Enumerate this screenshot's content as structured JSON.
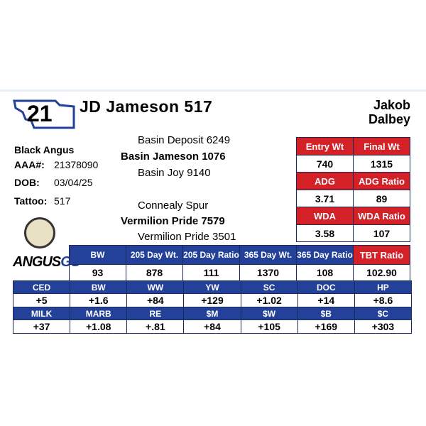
{
  "card": {
    "tag": "21",
    "title": "JD Jameson 517",
    "owner": [
      "Jakob",
      "Dalbey"
    ],
    "breed": "Black Angus",
    "info": [
      {
        "label": "AAA#:",
        "value": "21378090"
      },
      {
        "label": "DOB:",
        "value": "03/04/25"
      },
      {
        "label": "Tattoo:",
        "value": "517"
      }
    ],
    "pedigree": [
      "Basin Deposit 6249",
      "Basin Jameson 1076",
      "Basin Joy 9140",
      "Connealy Spur",
      "Vermilion Pride 7579",
      "Vermilion Pride 3501"
    ],
    "logo": [
      "ANGUS",
      "GS"
    ],
    "performance": [
      [
        "Entry Wt",
        "Final Wt"
      ],
      [
        "740",
        "1315"
      ],
      [
        "ADG",
        "ADG Ratio"
      ],
      [
        "3.71",
        "89"
      ],
      [
        "WDA",
        "WDA Ratio"
      ],
      [
        "3.58",
        "107"
      ]
    ],
    "weights": {
      "headers": [
        "BW",
        "205 Day Wt.",
        "205 Day Ratio",
        "365 Day Wt.",
        "365 Day Ratio",
        "TBT Ratio"
      ],
      "values": [
        "93",
        "878",
        "111",
        "1370",
        "108",
        "102.90"
      ]
    },
    "epd": [
      [
        "CED",
        "BW",
        "WW",
        "YW",
        "SC",
        "DOC",
        "HP"
      ],
      [
        "+5",
        "+1.6",
        "+84",
        "+129",
        "+1.02",
        "+14",
        "+8.6"
      ],
      [
        "MILK",
        "MARB",
        "RE",
        "$M",
        "$W",
        "$B",
        "$C"
      ],
      [
        "+37",
        "+1.08",
        "+.81",
        "+84",
        "+105",
        "+169",
        "+303"
      ]
    ]
  }
}
